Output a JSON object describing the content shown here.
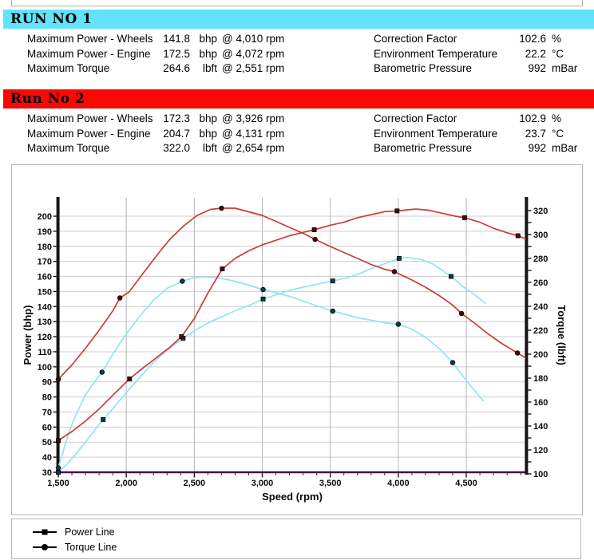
{
  "runs": [
    {
      "title": "RUN NO 1",
      "header_color": "#63e3f9",
      "stats_left": [
        {
          "label": "Maximum Power - Wheels",
          "value": "141.8",
          "unit": "bhp",
          "at": "@ 4,010 rpm"
        },
        {
          "label": "Maximum Power - Engine",
          "value": "172.5",
          "unit": "bhp",
          "at": "@ 4,072 rpm"
        },
        {
          "label": "Maximum Torque",
          "value": "264.6",
          "unit": "lbft",
          "at": "@ 2,551 rpm"
        }
      ],
      "stats_right": [
        {
          "label": "Correction Factor",
          "value": "102.6",
          "unit": "%"
        },
        {
          "label": "Environment Temperature",
          "value": "22.2",
          "unit": "°C"
        },
        {
          "label": "Barometric Pressure",
          "value": "992",
          "unit": "mBar"
        }
      ]
    },
    {
      "title": "Run No 2",
      "header_color": "#f90806",
      "stats_left": [
        {
          "label": "Maximum Power - Wheels",
          "value": "172.3",
          "unit": "bhp",
          "at": "@ 3,926 rpm"
        },
        {
          "label": "Maximum Power - Engine",
          "value": "204.7",
          "unit": "bhp",
          "at": "@ 4,131 rpm"
        },
        {
          "label": "Maximum Torque",
          "value": "322.0",
          "unit": "lbft",
          "at": "@ 2,654 rpm"
        }
      ],
      "stats_right": [
        {
          "label": "Correction Factor",
          "value": "102.9",
          "unit": "%"
        },
        {
          "label": "Environment Temperature",
          "value": "23.7",
          "unit": "°C"
        },
        {
          "label": "Barometric Pressure",
          "value": "992",
          "unit": "mBar"
        }
      ]
    }
  ],
  "chart_data": {
    "type": "line",
    "xlabel": "Speed (rpm)",
    "ylabel_left": "Power (bhp)",
    "ylabel_right": "Torque (lbft)",
    "x_axis": {
      "min": 1500,
      "max": 4940,
      "minor_step": 100,
      "major_ticks": [
        1500,
        2000,
        2500,
        3000,
        3500,
        4000,
        4500
      ],
      "tick_labels": [
        "1,500",
        "2,000",
        "2,500",
        "3,000",
        "3,500",
        "4,000",
        "4,500"
      ]
    },
    "left_axis": {
      "min": 30,
      "max": 200,
      "label_step": 10
    },
    "right_axis": {
      "min": 100,
      "max": 320,
      "label_step": 20,
      "tick_step": 10
    },
    "grid": {
      "horizontal_step_bhp": 10,
      "vertical_step_rpm": 500
    },
    "colors": {
      "run1": "#8ee6f2",
      "run2": "#cd3a36",
      "baseline": "#4b0c52"
    },
    "series": [
      {
        "id": "run1-power",
        "name": "Run 1 Power Line",
        "axis": "left",
        "color": "#8ee6f2",
        "marker": "square",
        "marker_color": "#0d3c46",
        "points": [
          [
            1500,
            30
          ],
          [
            1560,
            35
          ],
          [
            1620,
            41
          ],
          [
            1700,
            50
          ],
          [
            1760,
            57
          ],
          [
            1830,
            65
          ],
          [
            1900,
            72
          ],
          [
            2000,
            83
          ],
          [
            2100,
            93
          ],
          [
            2200,
            103
          ],
          [
            2300,
            111
          ],
          [
            2418,
            119
          ],
          [
            2520,
            125
          ],
          [
            2620,
            130
          ],
          [
            2720,
            134
          ],
          [
            2820,
            138
          ],
          [
            2910,
            141
          ],
          [
            3006,
            145
          ],
          [
            3110,
            148
          ],
          [
            3210,
            151
          ],
          [
            3310,
            153
          ],
          [
            3410,
            155
          ],
          [
            3518,
            157
          ],
          [
            3620,
            159
          ],
          [
            3720,
            162
          ],
          [
            3820,
            166
          ],
          [
            3920,
            169
          ],
          [
            4006,
            172
          ],
          [
            4072,
            172.5
          ],
          [
            4160,
            171.5
          ],
          [
            4260,
            168
          ],
          [
            4388,
            160
          ],
          [
            4480,
            153
          ],
          [
            4560,
            148
          ],
          [
            4641,
            142
          ]
        ],
        "markers": [
          [
            1500,
            30
          ],
          [
            1830,
            65
          ],
          [
            2418,
            119
          ],
          [
            3006,
            145
          ],
          [
            3518,
            157
          ],
          [
            4006,
            172
          ],
          [
            4388,
            160
          ]
        ]
      },
      {
        "id": "run1-torque",
        "name": "Run 1 Torque Line",
        "axis": "right",
        "color": "#8ee6f2",
        "marker": "circle",
        "marker_color": "#0d3c46",
        "points": [
          [
            1500,
            105
          ],
          [
            1560,
            128
          ],
          [
            1620,
            147
          ],
          [
            1700,
            166
          ],
          [
            1760,
            176
          ],
          [
            1822,
            185
          ],
          [
            1900,
            200
          ],
          [
            2000,
            217
          ],
          [
            2100,
            232
          ],
          [
            2200,
            245
          ],
          [
            2300,
            255
          ],
          [
            2412,
            261
          ],
          [
            2500,
            264
          ],
          [
            2560,
            264.6
          ],
          [
            2660,
            264
          ],
          [
            2760,
            262
          ],
          [
            2860,
            259
          ],
          [
            3006,
            254
          ],
          [
            3110,
            251
          ],
          [
            3210,
            248
          ],
          [
            3310,
            244
          ],
          [
            3410,
            240
          ],
          [
            3518,
            236
          ],
          [
            3620,
            233
          ],
          [
            3720,
            230
          ],
          [
            3820,
            228
          ],
          [
            3920,
            226
          ],
          [
            4000,
            225
          ],
          [
            4100,
            221
          ],
          [
            4200,
            214
          ],
          [
            4300,
            205
          ],
          [
            4400,
            193
          ],
          [
            4500,
            178
          ],
          [
            4624,
            161
          ]
        ],
        "markers": [
          [
            1500,
            105
          ],
          [
            1822,
            185
          ],
          [
            2412,
            261
          ],
          [
            3006,
            254
          ],
          [
            3518,
            236
          ],
          [
            4000,
            225
          ],
          [
            4400,
            193
          ]
        ]
      },
      {
        "id": "run2-power",
        "name": "Run 2 Power Line",
        "axis": "left",
        "color": "#cd3a36",
        "marker": "square",
        "marker_color": "#430b0b",
        "points": [
          [
            1500,
            51
          ],
          [
            1600,
            57
          ],
          [
            1700,
            64
          ],
          [
            1800,
            72
          ],
          [
            1900,
            81
          ],
          [
            2024,
            92
          ],
          [
            2120,
            99
          ],
          [
            2220,
            106
          ],
          [
            2320,
            113
          ],
          [
            2406,
            120
          ],
          [
            2500,
            132
          ],
          [
            2600,
            149
          ],
          [
            2706,
            165
          ],
          [
            2800,
            172
          ],
          [
            2900,
            177
          ],
          [
            3000,
            181
          ],
          [
            3100,
            184
          ],
          [
            3200,
            187
          ],
          [
            3290,
            189
          ],
          [
            3382,
            191
          ],
          [
            3500,
            194
          ],
          [
            3600,
            196
          ],
          [
            3700,
            199
          ],
          [
            3800,
            201
          ],
          [
            3900,
            203
          ],
          [
            3991,
            203.5
          ],
          [
            4072,
            204.3
          ],
          [
            4131,
            204.7
          ],
          [
            4220,
            204
          ],
          [
            4320,
            202
          ],
          [
            4420,
            200
          ],
          [
            4488,
            199
          ],
          [
            4600,
            196
          ],
          [
            4700,
            192
          ],
          [
            4800,
            189
          ],
          [
            4880,
            187
          ],
          [
            4935,
            185
          ]
        ],
        "markers": [
          [
            1500,
            51
          ],
          [
            2024,
            92
          ],
          [
            2406,
            120
          ],
          [
            2706,
            165
          ],
          [
            3382,
            191
          ],
          [
            3991,
            203.5
          ],
          [
            4488,
            199
          ],
          [
            4880,
            187
          ]
        ]
      },
      {
        "id": "run2-torque",
        "name": "Run 2 Torque Line",
        "axis": "right",
        "color": "#cd3a36",
        "marker": "circle",
        "marker_color": "#430b0b",
        "points": [
          [
            1500,
            179
          ],
          [
            1600,
            191
          ],
          [
            1700,
            205
          ],
          [
            1800,
            220
          ],
          [
            1900,
            236
          ],
          [
            1953,
            247
          ],
          [
            2020,
            252
          ],
          [
            2120,
            267
          ],
          [
            2220,
            282
          ],
          [
            2320,
            296
          ],
          [
            2420,
            307
          ],
          [
            2520,
            316
          ],
          [
            2620,
            321
          ],
          [
            2700,
            322
          ],
          [
            2800,
            322
          ],
          [
            2900,
            319
          ],
          [
            3000,
            316
          ],
          [
            3100,
            311
          ],
          [
            3200,
            306
          ],
          [
            3300,
            301
          ],
          [
            3388,
            296
          ],
          [
            3500,
            290
          ],
          [
            3600,
            285
          ],
          [
            3700,
            280
          ],
          [
            3800,
            275
          ],
          [
            3900,
            271
          ],
          [
            3971,
            269
          ],
          [
            4100,
            262
          ],
          [
            4200,
            256
          ],
          [
            4300,
            249
          ],
          [
            4400,
            241
          ],
          [
            4465,
            234
          ],
          [
            4560,
            226
          ],
          [
            4660,
            217
          ],
          [
            4760,
            209
          ],
          [
            4876,
            201
          ],
          [
            4935,
            197
          ]
        ],
        "markers": [
          [
            1500,
            179
          ],
          [
            1953,
            247
          ],
          [
            2700,
            322
          ],
          [
            3388,
            296
          ],
          [
            3971,
            269
          ],
          [
            4465,
            234
          ],
          [
            4876,
            201
          ]
        ]
      }
    ]
  },
  "legend": {
    "items": [
      {
        "label": "Power Line",
        "marker": "square"
      },
      {
        "label": "Torque Line",
        "marker": "circle"
      }
    ]
  }
}
